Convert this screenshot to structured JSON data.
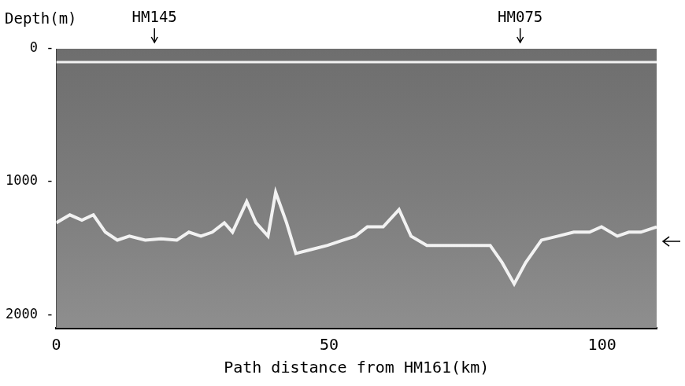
{
  "chart_data": {
    "type": "line",
    "x_label": "Path distance from HM161(km)",
    "y_label": "Depth(m)",
    "xlim": [
      0,
      110
    ],
    "xticks": [
      0,
      50,
      100
    ],
    "ylim": [
      0,
      2100
    ],
    "yticks": [
      0,
      1000,
      2000
    ],
    "grid": false,
    "series": [
      {
        "color": "#f2f2f2",
        "x": [
          0,
          110
        ],
        "values": [
          100,
          100
        ]
      },
      {
        "color": "#f2f2f2",
        "x": [
          0,
          2.5,
          4.7,
          6.8,
          9.0,
          11.2,
          13.4,
          16.3,
          19.2,
          22.1,
          24.3,
          26.5,
          28.6,
          30.8,
          32.3,
          34.9,
          36.6,
          38.8,
          40.2,
          42.2,
          43.9,
          46.8,
          49.7,
          52.6,
          54.8,
          57.0,
          59.9,
          62.8,
          65.0,
          67.9,
          71.5,
          75.9,
          79.5,
          81.7,
          83.9,
          86.0,
          88.9,
          91.9,
          94.8,
          97.7,
          99.9,
          102.8,
          104.9,
          107.1,
          110.0
        ],
        "values": [
          1310,
          1250,
          1290,
          1250,
          1380,
          1440,
          1410,
          1440,
          1430,
          1440,
          1380,
          1410,
          1380,
          1310,
          1380,
          1150,
          1310,
          1410,
          1080,
          1310,
          1540,
          1510,
          1480,
          1440,
          1410,
          1340,
          1340,
          1210,
          1410,
          1480,
          1480,
          1480,
          1480,
          1610,
          1770,
          1610,
          1440,
          1410,
          1380,
          1380,
          1340,
          1410,
          1380,
          1380,
          1340
        ]
      }
    ],
    "annotations": [
      {
        "text": "HM145",
        "x": 18
      },
      {
        "text": "HM075",
        "x": 85
      }
    ],
    "arrow": {
      "y": 1450
    }
  }
}
